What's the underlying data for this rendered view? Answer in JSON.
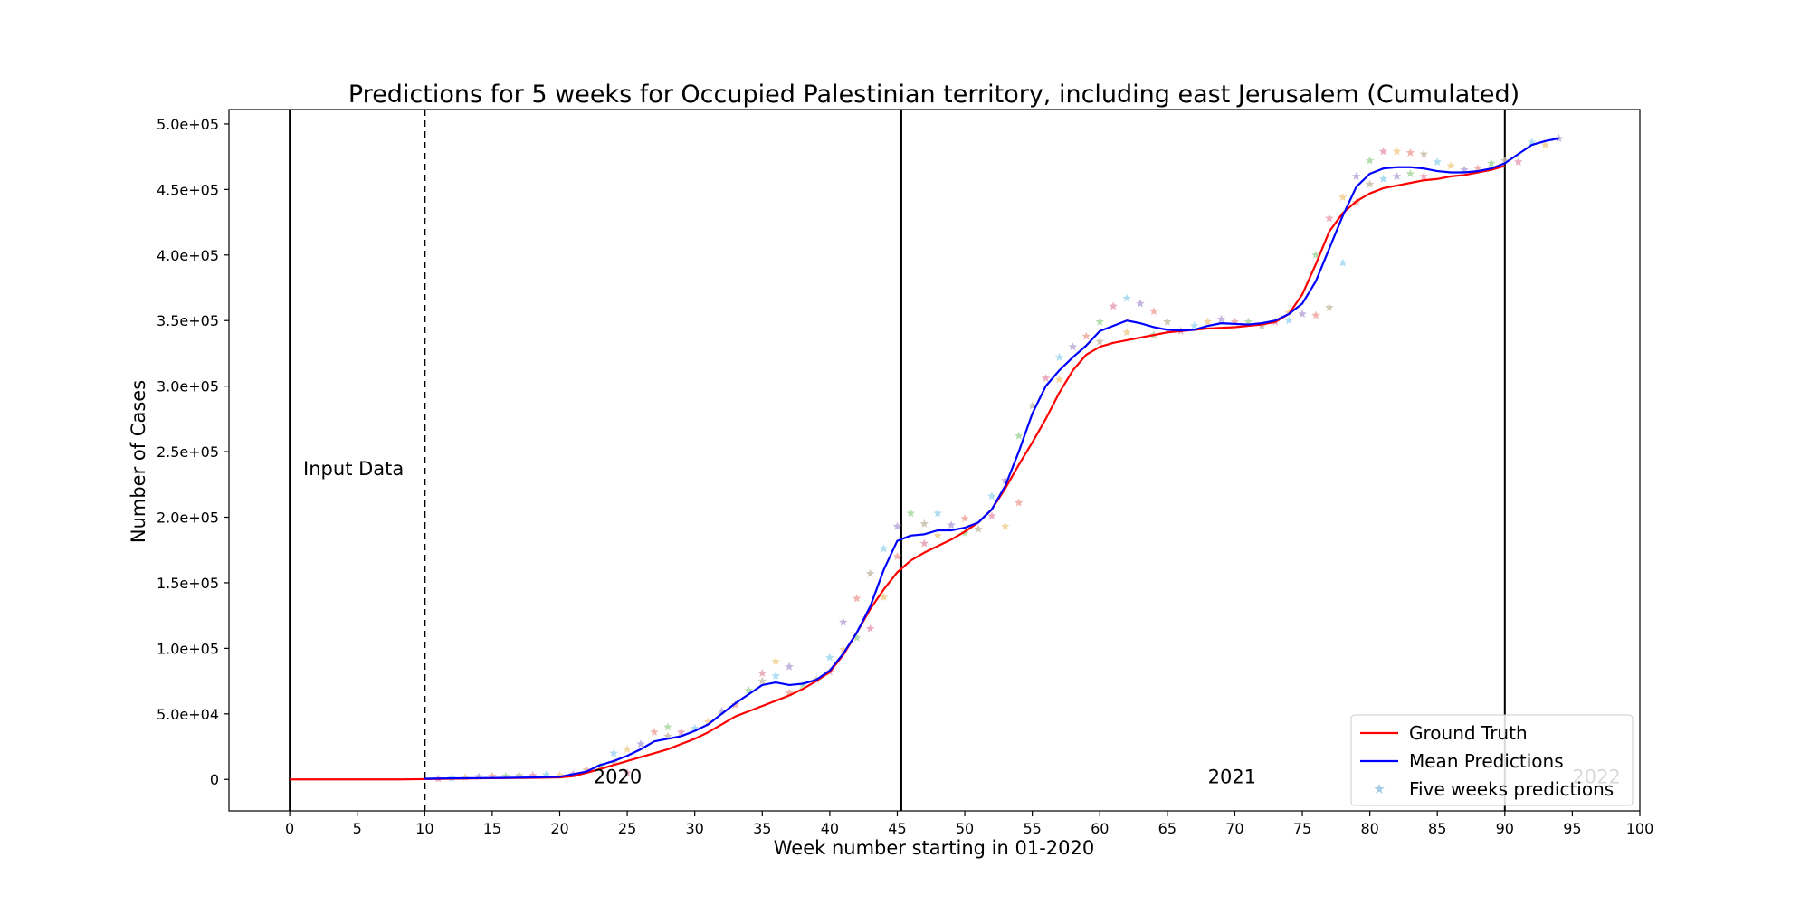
{
  "chart_data": {
    "type": "line",
    "title": "Predictions for 5 weeks for Occupied Palestinian territory, including east Jerusalem (Cumulated)",
    "xlabel": "Week number starting in 01-2020",
    "ylabel": "Number of Cases",
    "xlim": [
      -4.5,
      100
    ],
    "ylim": [
      -24000,
      511000
    ],
    "x_ticks": [
      0,
      5,
      10,
      15,
      20,
      25,
      30,
      35,
      40,
      45,
      50,
      55,
      60,
      65,
      70,
      75,
      80,
      85,
      90,
      95,
      100
    ],
    "y_ticks": [
      0,
      50000,
      100000,
      150000,
      200000,
      250000,
      300000,
      350000,
      400000,
      450000,
      500000
    ],
    "y_tick_labels": [
      "0",
      "5.0e+04",
      "1.0e+05",
      "1.5e+05",
      "2.0e+05",
      "2.5e+05",
      "3.0e+05",
      "3.5e+05",
      "4.0e+05",
      "4.5e+05",
      "5.0e+05"
    ],
    "grid": false,
    "legend_position": "bottom-right",
    "vlines": [
      {
        "x": 0,
        "style": "solid"
      },
      {
        "x": 10,
        "style": "dashed"
      },
      {
        "x": 45.3,
        "style": "solid"
      },
      {
        "x": 90,
        "style": "solid"
      }
    ],
    "annotations": [
      {
        "text": "Input Data",
        "x": 1,
        "y": 237000,
        "color": "#000000"
      },
      {
        "text": "2020",
        "x": 22.5,
        "y": 2000,
        "color": "#000000"
      },
      {
        "text": "2021",
        "x": 68,
        "y": 2000,
        "color": "#000000"
      },
      {
        "text": "2022",
        "x": 95,
        "y": 2000,
        "color": "#c8c8c8"
      }
    ],
    "series": [
      {
        "name": "Ground Truth",
        "kind": "line",
        "color": "#ff0000",
        "x": [
          0,
          2,
          4,
          6,
          8,
          10,
          12,
          14,
          16,
          18,
          20,
          21,
          22,
          23,
          24,
          25,
          26,
          27,
          28,
          29,
          30,
          31,
          32,
          33,
          34,
          35,
          36,
          37,
          38,
          39,
          40,
          41,
          42,
          43,
          44,
          45,
          46,
          47,
          48,
          49,
          50,
          51,
          52,
          53,
          54,
          55,
          56,
          57,
          58,
          59,
          60,
          61,
          62,
          63,
          64,
          65,
          66,
          67,
          68,
          69,
          70,
          71,
          72,
          73,
          74,
          75,
          76,
          77,
          78,
          79,
          80,
          81,
          82,
          83,
          84,
          85,
          86,
          87,
          88,
          89,
          90
        ],
        "values": [
          0,
          0,
          0,
          0,
          0,
          200,
          500,
          800,
          1000,
          1200,
          1500,
          2500,
          5000,
          8000,
          11000,
          14000,
          17000,
          20000,
          23000,
          27000,
          31000,
          36000,
          42000,
          48000,
          52000,
          56000,
          60000,
          64000,
          69000,
          75000,
          82000,
          95000,
          112000,
          130000,
          145000,
          158000,
          167000,
          173000,
          178000,
          183000,
          189000,
          196000,
          206000,
          222000,
          240000,
          257000,
          275000,
          295000,
          312000,
          324000,
          330000,
          333000,
          335000,
          337000,
          339000,
          341000,
          342000,
          343000,
          344000,
          344500,
          345000,
          346000,
          347000,
          349000,
          355000,
          370000,
          393000,
          418000,
          432000,
          441000,
          447000,
          451000,
          453000,
          455000,
          457000,
          458000,
          460000,
          461000,
          463000,
          465000,
          468000
        ]
      },
      {
        "name": "Mean Predictions",
        "kind": "line",
        "color": "#0000ff",
        "x": [
          10,
          12,
          14,
          16,
          18,
          20,
          22,
          23,
          24,
          25,
          26,
          27,
          28,
          29,
          30,
          31,
          32,
          33,
          34,
          35,
          36,
          37,
          38,
          39,
          40,
          41,
          42,
          43,
          44,
          45,
          46,
          47,
          48,
          49,
          50,
          51,
          52,
          53,
          54,
          55,
          56,
          57,
          58,
          59,
          60,
          61,
          62,
          63,
          64,
          65,
          66,
          67,
          68,
          69,
          70,
          71,
          72,
          73,
          74,
          75,
          76,
          77,
          78,
          79,
          80,
          81,
          82,
          83,
          84,
          85,
          86,
          87,
          88,
          89,
          90,
          91,
          92,
          93,
          94
        ],
        "values": [
          500,
          800,
          1000,
          1200,
          1500,
          2000,
          6000,
          11000,
          14000,
          18000,
          23000,
          29000,
          31000,
          33000,
          37000,
          42000,
          50000,
          58000,
          65000,
          72000,
          74000,
          72000,
          73000,
          76000,
          83000,
          96000,
          112000,
          132000,
          160000,
          182000,
          186000,
          187000,
          190000,
          190000,
          192000,
          196000,
          206000,
          224000,
          250000,
          279000,
          300000,
          312000,
          322000,
          331000,
          342000,
          346000,
          350000,
          348000,
          345000,
          343000,
          342500,
          343000,
          346000,
          348000,
          347500,
          347000,
          348000,
          350000,
          355000,
          363000,
          380000,
          405000,
          430000,
          452000,
          462000,
          466000,
          467000,
          467000,
          466000,
          464000,
          463000,
          463000,
          464000,
          466000,
          470000,
          477000,
          484000,
          487000,
          489000
        ]
      },
      {
        "name": "Five weeks predictions",
        "kind": "scatter",
        "marker": "star",
        "color": "#a6cee3",
        "palette": [
          "#e6a0b4",
          "#a0d8f0",
          "#f0d090",
          "#b8a8d8",
          "#f0a8a0",
          "#a8d8a0",
          "#c8c0a8"
        ],
        "points": [
          [
            11,
            500
          ],
          [
            12,
            1000
          ],
          [
            13,
            1500
          ],
          [
            14,
            2000
          ],
          [
            15,
            2500
          ],
          [
            16,
            2500
          ],
          [
            17,
            3000
          ],
          [
            18,
            3000
          ],
          [
            19,
            3500
          ],
          [
            20,
            3000
          ],
          [
            21,
            4000
          ],
          [
            22,
            7000
          ],
          [
            23,
            10000
          ],
          [
            24,
            13000
          ],
          [
            25,
            5000
          ],
          [
            24,
            20000
          ],
          [
            25,
            23000
          ],
          [
            26,
            27000
          ],
          [
            27,
            36000
          ],
          [
            28,
            40000
          ],
          [
            28,
            33000
          ],
          [
            29,
            36000
          ],
          [
            30,
            39000
          ],
          [
            31,
            44000
          ],
          [
            32,
            52000
          ],
          [
            33,
            57000
          ],
          [
            34,
            68000
          ],
          [
            35,
            75000
          ],
          [
            35,
            81000
          ],
          [
            36,
            79000
          ],
          [
            36,
            90000
          ],
          [
            37,
            86000
          ],
          [
            37,
            66000
          ],
          [
            38,
            72000
          ],
          [
            39,
            76000
          ],
          [
            40,
            82000
          ],
          [
            40,
            93000
          ],
          [
            41,
            99000
          ],
          [
            41,
            120000
          ],
          [
            42,
            138000
          ],
          [
            42,
            108000
          ],
          [
            43,
            157000
          ],
          [
            43,
            115000
          ],
          [
            44,
            176000
          ],
          [
            44,
            139000
          ],
          [
            45,
            193000
          ],
          [
            45,
            170000
          ],
          [
            46,
            203000
          ],
          [
            47,
            195000
          ],
          [
            47,
            180000
          ],
          [
            48,
            203000
          ],
          [
            48,
            186000
          ],
          [
            49,
            194000
          ],
          [
            50,
            199000
          ],
          [
            50,
            188000
          ],
          [
            51,
            191000
          ],
          [
            52,
            201000
          ],
          [
            52,
            216000
          ],
          [
            53,
            193000
          ],
          [
            53,
            228000
          ],
          [
            54,
            211000
          ],
          [
            54,
            262000
          ],
          [
            55,
            285000
          ],
          [
            56,
            306000
          ],
          [
            57,
            322000
          ],
          [
            57,
            305000
          ],
          [
            58,
            330000
          ],
          [
            59,
            338000
          ],
          [
            60,
            349000
          ],
          [
            60,
            334000
          ],
          [
            61,
            361000
          ],
          [
            62,
            367000
          ],
          [
            62,
            341000
          ],
          [
            63,
            363000
          ],
          [
            64,
            357000
          ],
          [
            64,
            339000
          ],
          [
            65,
            349000
          ],
          [
            66,
            342000
          ],
          [
            67,
            346000
          ],
          [
            68,
            349000
          ],
          [
            69,
            351000
          ],
          [
            70,
            349000
          ],
          [
            71,
            349000
          ],
          [
            72,
            346000
          ],
          [
            73,
            349000
          ],
          [
            74,
            350000
          ],
          [
            74,
            356000
          ],
          [
            75,
            355000
          ],
          [
            76,
            354000
          ],
          [
            76,
            400000
          ],
          [
            77,
            360000
          ],
          [
            77,
            428000
          ],
          [
            78,
            394000
          ],
          [
            78,
            444000
          ],
          [
            79,
            460000
          ],
          [
            79,
            440000
          ],
          [
            80,
            472000
          ],
          [
            80,
            454000
          ],
          [
            81,
            479000
          ],
          [
            81,
            458000
          ],
          [
            82,
            479000
          ],
          [
            82,
            460000
          ],
          [
            83,
            478000
          ],
          [
            83,
            462000
          ],
          [
            84,
            477000
          ],
          [
            84,
            460000
          ],
          [
            85,
            471000
          ],
          [
            86,
            468000
          ],
          [
            87,
            465000
          ],
          [
            88,
            466000
          ],
          [
            89,
            470000
          ],
          [
            90,
            472000
          ],
          [
            91,
            471000
          ],
          [
            92,
            486000
          ],
          [
            93,
            484000
          ],
          [
            94,
            489000
          ]
        ]
      }
    ]
  }
}
